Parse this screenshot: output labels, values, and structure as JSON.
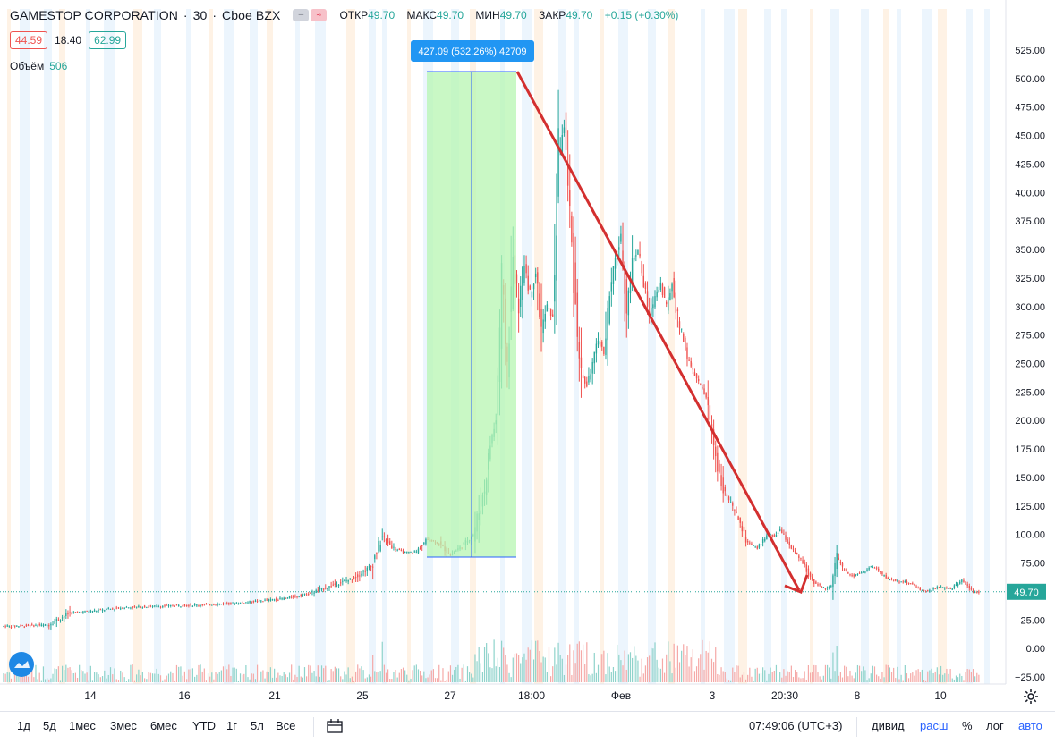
{
  "header": {
    "symbol": "GAMESTOP CORPORATION",
    "interval": "30",
    "exchange": "Cboe BZX",
    "ohlc": {
      "open_label": "ОТКР",
      "open": "49.70",
      "high_label": "МАКС",
      "high": "49.70",
      "low_label": "МИН",
      "low": "49.70",
      "close_label": "ЗАКР",
      "close": "49.70",
      "change": "+0.15 (+0.30%)"
    },
    "boxes": {
      "left": "44.59",
      "mid": "18.40",
      "right": "62.99"
    },
    "volume_label": "Объём",
    "volume_value": "506"
  },
  "measure_label": "427.09 (532.26%) 42709",
  "last_price_tag": "49.70",
  "chart_data": {
    "type": "candlestick",
    "x_ticks": [
      "14",
      "16",
      "21",
      "25",
      "27",
      "18:00",
      "Фев",
      "3",
      "20:30",
      "8",
      "10"
    ],
    "y_ticks": [
      "525.00",
      "500.00",
      "475.00",
      "450.00",
      "425.00",
      "400.00",
      "375.00",
      "350.00",
      "325.00",
      "300.00",
      "275.00",
      "250.00",
      "225.00",
      "200.00",
      "175.00",
      "150.00",
      "125.00",
      "100.00",
      "75.00",
      "50.00",
      "25.00",
      "0.00",
      "−25.00"
    ],
    "y_range": [
      -25,
      525
    ],
    "last_price": 49.7,
    "price_path": [
      {
        "x": 0,
        "y": 19.5
      },
      {
        "x": 4,
        "y": 20
      },
      {
        "x": 8,
        "y": 20.5
      },
      {
        "x": 12,
        "y": 31
      },
      {
        "x": 16,
        "y": 33
      },
      {
        "x": 22,
        "y": 36
      },
      {
        "x": 28,
        "y": 37
      },
      {
        "x": 34,
        "y": 38
      },
      {
        "x": 38,
        "y": 39
      },
      {
        "x": 42,
        "y": 40
      },
      {
        "x": 46,
        "y": 42
      },
      {
        "x": 50,
        "y": 44
      },
      {
        "x": 54,
        "y": 48
      },
      {
        "x": 58,
        "y": 55
      },
      {
        "x": 62,
        "y": 62
      },
      {
        "x": 65,
        "y": 72
      },
      {
        "x": 67,
        "y": 98
      },
      {
        "x": 69,
        "y": 88
      },
      {
        "x": 71,
        "y": 84
      },
      {
        "x": 73,
        "y": 85
      },
      {
        "x": 75,
        "y": 96
      },
      {
        "x": 77,
        "y": 92
      },
      {
        "x": 79,
        "y": 82
      },
      {
        "x": 81,
        "y": 90
      },
      {
        "x": 83,
        "y": 100
      },
      {
        "x": 85,
        "y": 140
      },
      {
        "x": 86,
        "y": 180
      },
      {
        "x": 87,
        "y": 200
      },
      {
        "x": 88,
        "y": 320
      },
      {
        "x": 89,
        "y": 250
      },
      {
        "x": 90,
        "y": 340
      },
      {
        "x": 91,
        "y": 300
      },
      {
        "x": 92,
        "y": 340
      },
      {
        "x": 93,
        "y": 310
      },
      {
        "x": 94,
        "y": 330
      },
      {
        "x": 95,
        "y": 280
      },
      {
        "x": 96,
        "y": 300
      },
      {
        "x": 97,
        "y": 290
      },
      {
        "x": 98,
        "y": 430
      },
      {
        "x": 99,
        "y": 460
      },
      {
        "x": 100,
        "y": 380
      },
      {
        "x": 101,
        "y": 300
      },
      {
        "x": 102,
        "y": 240
      },
      {
        "x": 103,
        "y": 230
      },
      {
        "x": 104,
        "y": 250
      },
      {
        "x": 105,
        "y": 270
      },
      {
        "x": 106,
        "y": 260
      },
      {
        "x": 107,
        "y": 310
      },
      {
        "x": 108,
        "y": 340
      },
      {
        "x": 109,
        "y": 360
      },
      {
        "x": 110,
        "y": 300
      },
      {
        "x": 111,
        "y": 340
      },
      {
        "x": 112,
        "y": 350
      },
      {
        "x": 113,
        "y": 320
      },
      {
        "x": 114,
        "y": 290
      },
      {
        "x": 115,
        "y": 310
      },
      {
        "x": 116,
        "y": 320
      },
      {
        "x": 117,
        "y": 300
      },
      {
        "x": 118,
        "y": 320
      },
      {
        "x": 119,
        "y": 290
      },
      {
        "x": 120,
        "y": 270
      },
      {
        "x": 121,
        "y": 250
      },
      {
        "x": 122,
        "y": 240
      },
      {
        "x": 123,
        "y": 230
      },
      {
        "x": 124,
        "y": 220
      },
      {
        "x": 125,
        "y": 190
      },
      {
        "x": 126,
        "y": 160
      },
      {
        "x": 127,
        "y": 140
      },
      {
        "x": 128,
        "y": 130
      },
      {
        "x": 129,
        "y": 120
      },
      {
        "x": 130,
        "y": 110
      },
      {
        "x": 131,
        "y": 95
      },
      {
        "x": 132,
        "y": 90
      },
      {
        "x": 133,
        "y": 88
      },
      {
        "x": 134,
        "y": 95
      },
      {
        "x": 135,
        "y": 100
      },
      {
        "x": 136,
        "y": 98
      },
      {
        "x": 137,
        "y": 104
      },
      {
        "x": 138,
        "y": 96
      },
      {
        "x": 139,
        "y": 88
      },
      {
        "x": 140,
        "y": 82
      },
      {
        "x": 141,
        "y": 75
      },
      {
        "x": 142,
        "y": 65
      },
      {
        "x": 143,
        "y": 58
      },
      {
        "x": 144,
        "y": 55
      },
      {
        "x": 145,
        "y": 52
      },
      {
        "x": 146,
        "y": 56
      },
      {
        "x": 147,
        "y": 80
      },
      {
        "x": 148,
        "y": 70
      },
      {
        "x": 149,
        "y": 66
      },
      {
        "x": 150,
        "y": 64
      },
      {
        "x": 151,
        "y": 66
      },
      {
        "x": 152,
        "y": 68
      },
      {
        "x": 153,
        "y": 72
      },
      {
        "x": 154,
        "y": 70
      },
      {
        "x": 155,
        "y": 65
      },
      {
        "x": 156,
        "y": 61
      },
      {
        "x": 157,
        "y": 60
      },
      {
        "x": 158,
        "y": 59
      },
      {
        "x": 159,
        "y": 58
      },
      {
        "x": 160,
        "y": 57
      },
      {
        "x": 161,
        "y": 54
      },
      {
        "x": 162,
        "y": 51
      },
      {
        "x": 163,
        "y": 50
      },
      {
        "x": 164,
        "y": 52
      },
      {
        "x": 165,
        "y": 54
      },
      {
        "x": 166,
        "y": 53
      },
      {
        "x": 167,
        "y": 52
      },
      {
        "x": 168,
        "y": 56
      },
      {
        "x": 169,
        "y": 60
      },
      {
        "x": 170,
        "y": 55
      },
      {
        "x": 171,
        "y": 50
      },
      {
        "x": 172,
        "y": 49.7
      }
    ]
  },
  "bottom": {
    "ranges": [
      "1д",
      "5д",
      "1мес",
      "3мес",
      "6мес",
      "YTD",
      "1г",
      "5л",
      "Все"
    ],
    "clock": "07:49:06 (UTC+3)",
    "tools": [
      "дивид",
      "расш",
      "%",
      "лог",
      "авто"
    ]
  }
}
